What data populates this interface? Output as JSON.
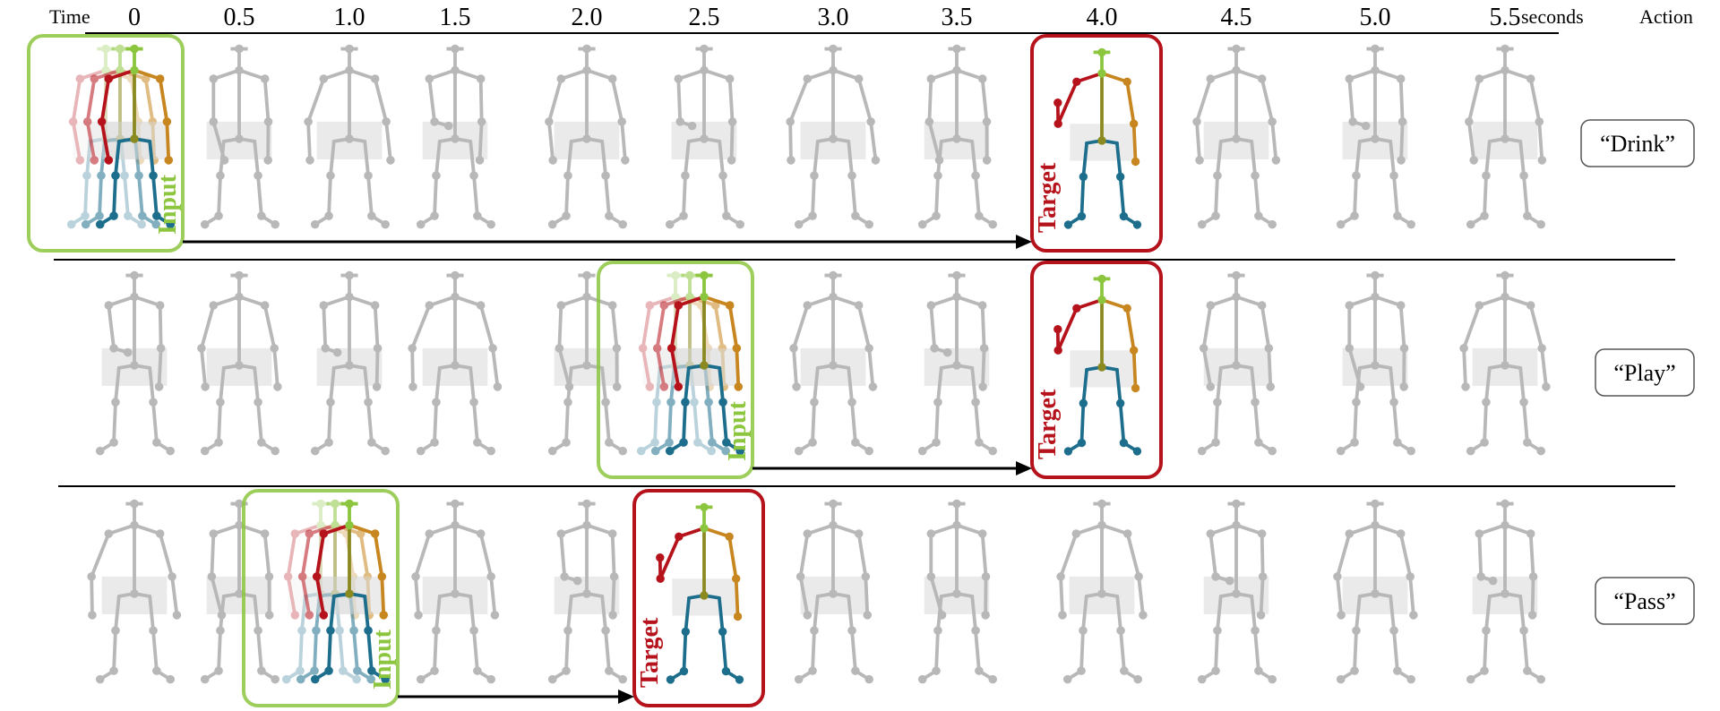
{
  "header": {
    "time_label": "Time",
    "seconds_label": "seconds",
    "action_label": "Action",
    "ticks": [
      "0",
      "0.5",
      "1.0",
      "1.5",
      "2.0",
      "2.5",
      "3.0",
      "3.5",
      "4.0",
      "4.5",
      "5.0",
      "5.5"
    ]
  },
  "box_labels": {
    "input": "Input",
    "target": "Target"
  },
  "rows": [
    {
      "action": "“Drink”",
      "input_tick": 0,
      "target_tick": 8
    },
    {
      "action": "“Play”",
      "input_tick": 5,
      "target_tick": 8
    },
    {
      "action": "“Pass”",
      "input_tick": 2,
      "target_tick": 5
    }
  ],
  "colors": {
    "input_box": "#8cc63f",
    "target_box": "#b5121b",
    "ghost_figure": "#b8b8b8",
    "arm_red": "#b5121b",
    "head_green": "#8cc63f",
    "torso_olive": "#8a8a20",
    "arm_orange": "#c7861f",
    "leg_teal": "#1d6e8c"
  }
}
